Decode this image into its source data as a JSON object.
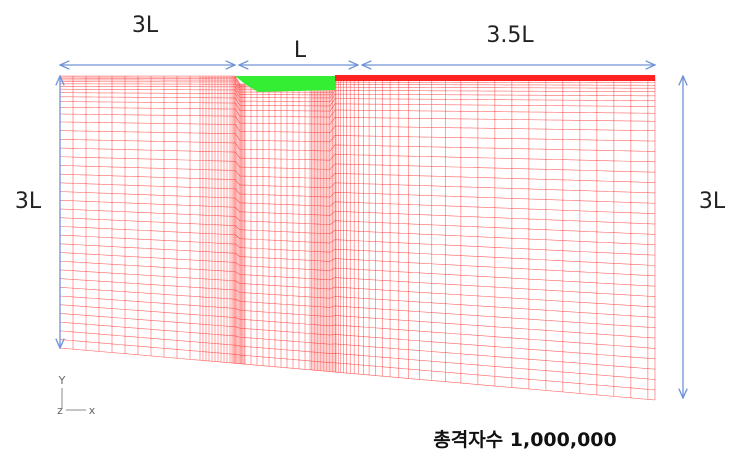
{
  "dimensions": {
    "left_width": "3L",
    "middle_width": "L",
    "right_width": "3.5L",
    "left_height": "3L",
    "right_height": "3L"
  },
  "axes": {
    "y": "Y",
    "z": "z",
    "x": "x"
  },
  "caption": "총격자수 1,000,000"
}
